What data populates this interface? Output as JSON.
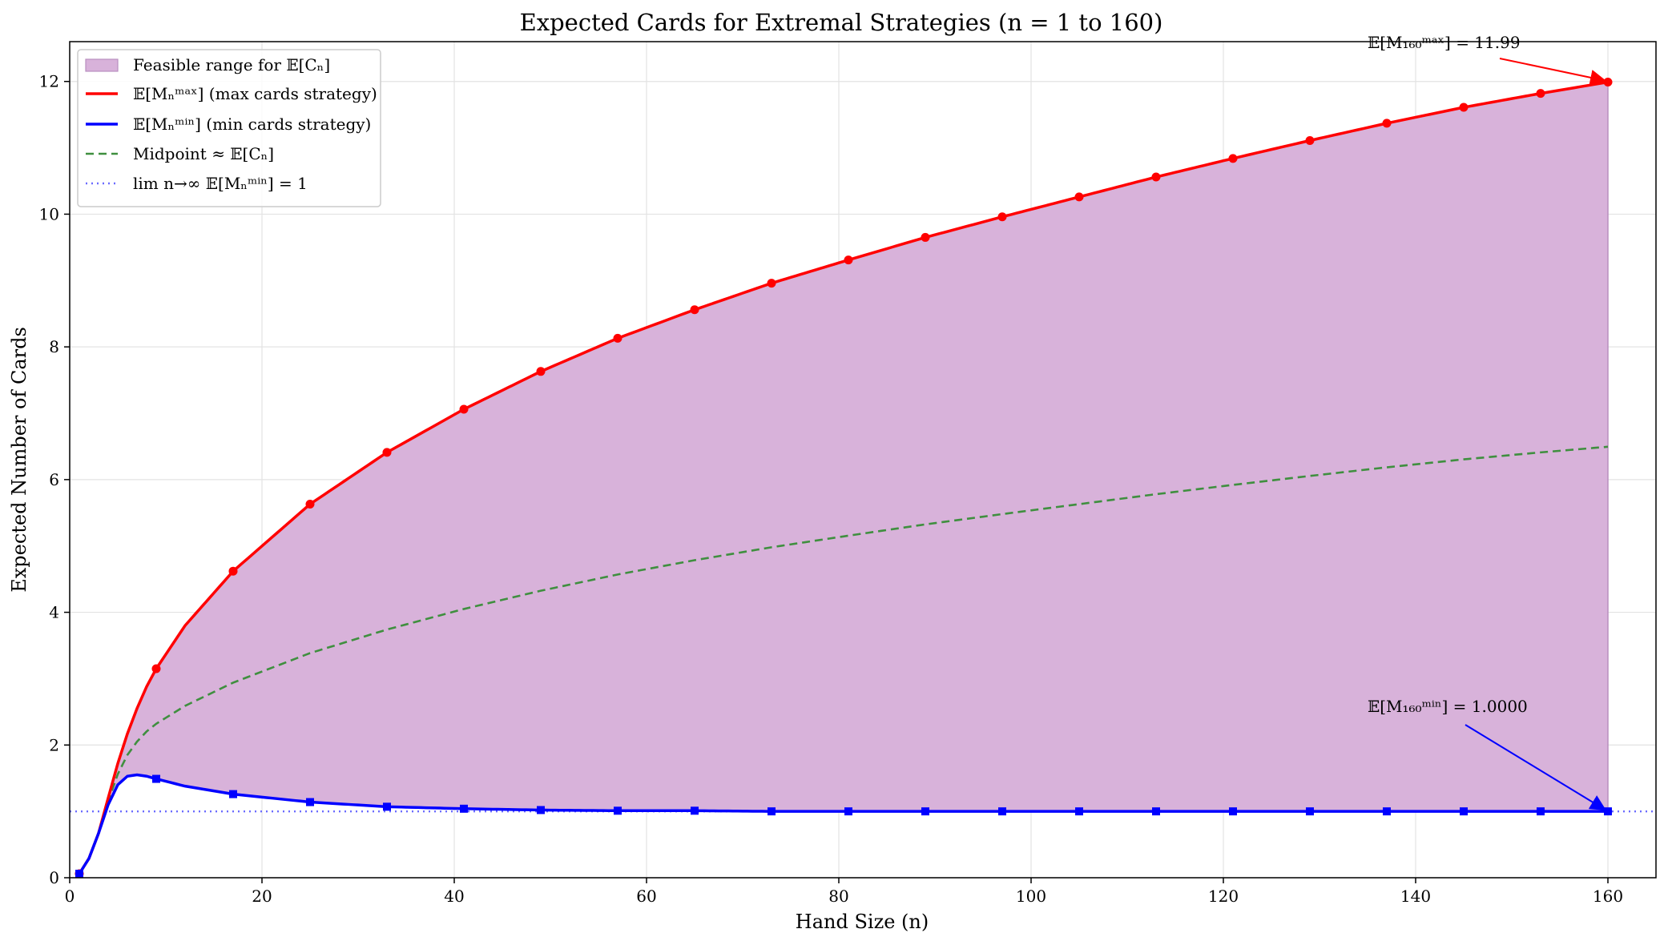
{
  "chart_data": {
    "type": "line",
    "title": "Expected Cards for Extremal Strategies (n = 1 to 160)",
    "xlabel": "Hand Size (n)",
    "ylabel": "Expected Number of Cards",
    "xlim": [
      0,
      165
    ],
    "ylim": [
      0,
      12.6
    ],
    "xticks": [
      "0",
      "20",
      "40",
      "60",
      "80",
      "100",
      "120",
      "140",
      "160"
    ],
    "yticks": [
      "0",
      "2",
      "4",
      "6",
      "8",
      "10",
      "12"
    ],
    "grid": true,
    "legend_position": "upper-left",
    "legend": [
      "Feasible range for 𝔼[Cₙ]",
      "𝔼[Mₙᵐᵃˣ] (max cards strategy)",
      "𝔼[Mₙᵐⁱⁿ] (min cards strategy)",
      "Midpoint ≈ 𝔼[Cₙ]",
      "lim n→∞ 𝔼[Mₙᵐⁱⁿ] = 1"
    ],
    "series": [
      {
        "name": "𝔼[Mₙᵐᵃˣ] (max cards strategy)",
        "color": "#ff0000",
        "x": [
          1,
          2,
          3,
          4,
          5,
          6,
          7,
          8,
          9,
          12,
          17,
          25,
          33,
          41,
          49,
          57,
          65,
          73,
          81,
          89,
          97,
          105,
          113,
          121,
          129,
          137,
          145,
          153,
          160
        ],
        "values": [
          0.06,
          0.29,
          0.67,
          1.2,
          1.72,
          2.17,
          2.55,
          2.88,
          3.15,
          3.8,
          4.62,
          5.63,
          6.41,
          7.06,
          7.63,
          8.13,
          8.56,
          8.96,
          9.31,
          9.65,
          9.96,
          10.26,
          10.56,
          10.84,
          11.11,
          11.37,
          11.61,
          11.82,
          11.99
        ],
        "markers_at": [
          1,
          9,
          17,
          25,
          33,
          41,
          49,
          57,
          65,
          73,
          81,
          89,
          97,
          105,
          113,
          121,
          129,
          137,
          145,
          153,
          160
        ]
      },
      {
        "name": "𝔼[Mₙᵐⁱⁿ] (min cards strategy)",
        "color": "#0000ff",
        "x": [
          1,
          2,
          3,
          4,
          5,
          6,
          7,
          8,
          9,
          12,
          17,
          25,
          33,
          41,
          49,
          57,
          65,
          73,
          81,
          89,
          97,
          105,
          113,
          121,
          129,
          137,
          145,
          153,
          160
        ],
        "values": [
          0.06,
          0.29,
          0.67,
          1.1,
          1.4,
          1.53,
          1.55,
          1.53,
          1.49,
          1.38,
          1.26,
          1.14,
          1.07,
          1.04,
          1.02,
          1.01,
          1.01,
          1.0,
          1.0,
          1.0,
          1.0,
          1.0,
          1.0,
          1.0,
          1.0,
          1.0,
          1.0,
          1.0,
          1.0
        ],
        "markers_at": [
          1,
          9,
          17,
          25,
          33,
          41,
          49,
          57,
          65,
          73,
          81,
          89,
          97,
          105,
          113,
          121,
          129,
          137,
          145,
          153,
          160
        ]
      },
      {
        "name": "Midpoint ≈ 𝔼[Cₙ]",
        "color": "#2e8b2e",
        "style": "dashed"
      },
      {
        "name": "lim n→∞ 𝔼[Mₙᵐⁱⁿ] = 1",
        "color": "#6b6bff",
        "style": "dotted",
        "y": 1
      }
    ],
    "fill_between": {
      "name": "Feasible range for 𝔼[Cₙ]",
      "color": "#d8b2da",
      "edge": "#b98fc0"
    },
    "annotations": [
      {
        "text": "𝔼[M₁₆₀ᵐᵃˣ] = 11.99",
        "x": 160,
        "y": 11.99,
        "color": "#ff0000"
      },
      {
        "text": "𝔼[M₁₆₀ᵐⁱⁿ] = 1.0000",
        "x": 160,
        "y": 1.0,
        "color": "#0000ff"
      }
    ]
  }
}
